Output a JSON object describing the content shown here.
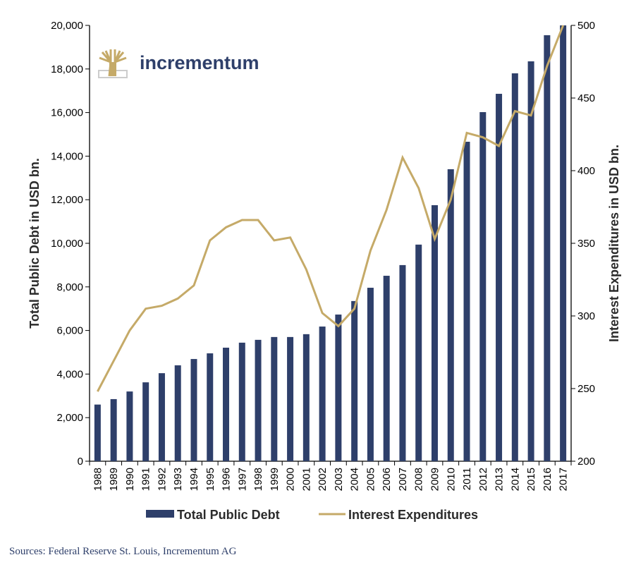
{
  "colors": {
    "debt": "#2e3f6a",
    "interest": "#c5aa68",
    "axis": "#000000"
  },
  "logo": {
    "text": "incrementum",
    "icon": "tree-icon"
  },
  "source": "Sources: Federal Reserve St. Louis, Incrementum AG",
  "chart_data": {
    "type": "bar+line",
    "title": "",
    "ylabel": "Total Public Debt in USD bn.",
    "y2label": "Interest Expenditures in USD bn.",
    "ylim": [
      0,
      20000
    ],
    "y2lim": [
      200,
      500
    ],
    "yticks": [
      "0",
      "2,000",
      "4,000",
      "6,000",
      "8,000",
      "10,000",
      "12,000",
      "14,000",
      "16,000",
      "18,000",
      "20,000"
    ],
    "y2ticks": [
      "200",
      "250",
      "300",
      "350",
      "400",
      "450",
      "500"
    ],
    "legend_position": "bottom",
    "grid": false,
    "categories": [
      "1988",
      "1989",
      "1990",
      "1991",
      "1992",
      "1993",
      "1994",
      "1995",
      "1996",
      "1997",
      "1998",
      "1999",
      "2000",
      "2001",
      "2002",
      "2003",
      "2004",
      "2005",
      "2006",
      "2007",
      "2008",
      "2009",
      "2010",
      "2011",
      "2012",
      "2013",
      "2014",
      "2015",
      "2016",
      "2017"
    ],
    "series": [
      {
        "name": "Total Public Debt",
        "type": "bar",
        "axis": "left",
        "values": [
          2600,
          2850,
          3200,
          3620,
          4040,
          4400,
          4690,
          4950,
          5210,
          5440,
          5570,
          5700,
          5700,
          5830,
          6180,
          6730,
          7350,
          7960,
          8510,
          9000,
          9940,
          11750,
          13400,
          14660,
          16020,
          16860,
          17800,
          18350,
          19550,
          20000
        ]
      },
      {
        "name": "Interest Expenditures",
        "type": "line",
        "axis": "right",
        "values": [
          248,
          269,
          290,
          305,
          307,
          312,
          321,
          352,
          361,
          366,
          366,
          352,
          354,
          332,
          302,
          293,
          305,
          345,
          373,
          409,
          388,
          353,
          380,
          426,
          423,
          417,
          441,
          438,
          472,
          500
        ]
      }
    ]
  }
}
